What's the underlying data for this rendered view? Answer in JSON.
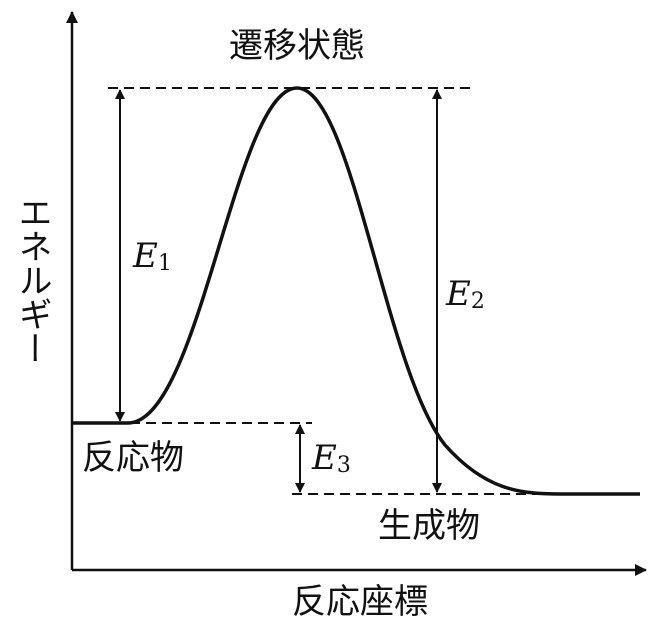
{
  "diagram": {
    "title": "遷移状態",
    "y_axis_label": "エネルギー",
    "x_axis_label": "反応座標",
    "reactant_label": "反応物",
    "product_label": "生成物",
    "energies": [
      {
        "symbol": "E",
        "subscript": "1"
      },
      {
        "symbol": "E",
        "subscript": "2"
      },
      {
        "symbol": "E",
        "subscript": "3"
      }
    ]
  }
}
